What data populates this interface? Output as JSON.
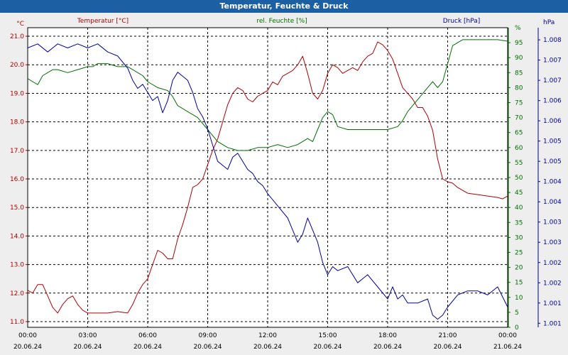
{
  "title": "Temperatur, Feuchte & Druck",
  "colors": {
    "temperature": "#b00000",
    "humidity": "#007000",
    "pressure": "#0000a0"
  },
  "chart_data": {
    "type": "line",
    "title": "Temperatur, Feuchte & Druck",
    "axes": {
      "temperature": {
        "label": "Temperatur [°C]",
        "unit": "°C",
        "ylim": [
          10.8,
          21.3
        ],
        "ticks": [
          "11.0",
          "12.0",
          "13.0",
          "14.0",
          "15.0",
          "16.0",
          "17.0",
          "18.0",
          "19.0",
          "20.0",
          "21.0"
        ]
      },
      "humidity": {
        "label": "rel. Feuchte [%]",
        "unit": "%",
        "ylim": [
          0,
          100
        ],
        "ticks": [
          "0",
          "5",
          "10",
          "15",
          "20",
          "25",
          "30",
          "35",
          "40",
          "45",
          "50",
          "55",
          "60",
          "65",
          "70",
          "75",
          "80",
          "85",
          "90",
          "95",
          "%"
        ]
      },
      "pressure": {
        "label": "Druck [hPa]",
        "unit": "hPa",
        "ylim": [
          1000.9,
          1008.3
        ],
        "ticks": [
          "1.001",
          "1.001",
          "1.002",
          "1.002",
          "1.003",
          "1.003",
          "1.004",
          "1.004",
          "1.005",
          "1.005",
          "1.006",
          "1.006",
          "1.007",
          "1.007",
          "1.008",
          "hPa"
        ]
      }
    },
    "x_ticks": [
      {
        "time": "00:00",
        "date": "20.06.24"
      },
      {
        "time": "03:00",
        "date": "20.06.24"
      },
      {
        "time": "06:00",
        "date": "20.06.24"
      },
      {
        "time": "09:00",
        "date": "20.06.24"
      },
      {
        "time": "12:00",
        "date": "20.06.24"
      },
      {
        "time": "15:00",
        "date": "20.06.24"
      },
      {
        "time": "18:00",
        "date": "20.06.24"
      },
      {
        "time": "21:00",
        "date": "20.06.24"
      },
      {
        "time": "00:00",
        "date": "21.06.24"
      }
    ],
    "xlim_hours": [
      0,
      24
    ],
    "series": [
      {
        "name": "Temperatur [°C]",
        "axis": "temperature",
        "x": [
          0,
          0.25,
          0.5,
          0.75,
          1,
          1.25,
          1.5,
          1.75,
          2,
          2.25,
          2.5,
          2.75,
          3,
          3.5,
          4,
          4.5,
          5,
          5.25,
          5.5,
          5.75,
          6,
          6.25,
          6.5,
          6.75,
          7,
          7.25,
          7.5,
          7.75,
          8,
          8.25,
          8.5,
          8.75,
          9,
          9.25,
          9.5,
          9.75,
          10,
          10.25,
          10.5,
          10.75,
          11,
          11.25,
          11.5,
          11.75,
          12,
          12.25,
          12.5,
          12.75,
          13,
          13.25,
          13.5,
          13.75,
          14,
          14.25,
          14.5,
          14.75,
          15,
          15.25,
          15.5,
          15.75,
          16,
          16.25,
          16.5,
          16.75,
          17,
          17.25,
          17.5,
          17.75,
          18,
          18.25,
          18.5,
          18.75,
          19,
          19.25,
          19.5,
          19.75,
          20,
          20.25,
          20.5,
          20.75,
          21,
          21.25,
          21.5,
          21.75,
          22,
          22.5,
          23,
          23.5,
          23.75,
          24
        ],
        "values": [
          12.1,
          12.0,
          12.3,
          12.3,
          11.9,
          11.5,
          11.3,
          11.6,
          11.8,
          11.9,
          11.6,
          11.4,
          11.3,
          11.3,
          11.3,
          11.35,
          11.3,
          11.6,
          12.0,
          12.3,
          12.5,
          13.0,
          13.5,
          13.4,
          13.2,
          13.2,
          13.9,
          14.4,
          15.0,
          15.7,
          15.8,
          16.0,
          16.5,
          17.0,
          17.4,
          18.0,
          18.6,
          19.0,
          19.2,
          19.1,
          18.8,
          18.7,
          18.9,
          19.0,
          19.1,
          19.4,
          19.3,
          19.6,
          19.7,
          19.8,
          20.0,
          20.3,
          19.7,
          19.0,
          18.8,
          19.1,
          19.7,
          20.0,
          19.9,
          19.7,
          19.8,
          19.9,
          19.8,
          20.1,
          20.3,
          20.4,
          20.8,
          20.7,
          20.5,
          20.2,
          19.7,
          19.2,
          19.0,
          18.8,
          18.5,
          18.5,
          18.2,
          17.7,
          16.7,
          16.0,
          15.9,
          15.85,
          15.7,
          15.6,
          15.5,
          15.45,
          15.4,
          15.35,
          15.3,
          15.4
        ]
      },
      {
        "name": "rel. Feuchte [%]",
        "axis": "humidity",
        "x": [
          0,
          0.25,
          0.5,
          0.75,
          1,
          1.25,
          1.5,
          2,
          2.5,
          3,
          3.25,
          3.5,
          4,
          4.5,
          5,
          5.25,
          5.5,
          5.75,
          6,
          6.5,
          7,
          7.25,
          7.5,
          8,
          8.5,
          9,
          9.5,
          10,
          10.5,
          11,
          11.5,
          12,
          12.5,
          13,
          13.5,
          14,
          14.25,
          14.5,
          14.75,
          15,
          15.25,
          15.5,
          16,
          16.5,
          17,
          17.5,
          18,
          18.5,
          18.75,
          19,
          19.25,
          19.5,
          20,
          20.25,
          20.5,
          20.75,
          21,
          21.25,
          21.5,
          21.75,
          22,
          22.5,
          23,
          23.5,
          24
        ],
        "values": [
          83,
          82,
          81,
          84,
          85,
          86,
          86,
          85,
          86,
          87,
          87,
          88,
          88,
          87,
          87,
          86,
          85,
          84,
          82,
          80,
          79,
          77,
          74,
          72,
          70,
          66,
          62,
          60,
          59,
          59,
          60,
          60,
          61,
          60,
          61,
          63,
          62,
          66,
          70,
          72,
          71,
          67,
          66,
          66,
          66,
          66,
          66,
          67,
          69,
          72,
          74,
          76,
          80,
          82,
          80,
          82,
          88,
          94,
          95,
          96,
          96,
          96,
          96,
          96,
          95.5
        ]
      },
      {
        "name": "Druck [hPa]",
        "axis": "pressure",
        "x": [
          0,
          0.5,
          1,
          1.25,
          1.5,
          2,
          2.5,
          3,
          3.5,
          4,
          4.5,
          5,
          5.25,
          5.5,
          5.75,
          6,
          6.25,
          6.5,
          6.75,
          7,
          7.25,
          7.5,
          7.75,
          8,
          8.25,
          8.5,
          8.75,
          9,
          9.25,
          9.5,
          9.75,
          10,
          10.25,
          10.5,
          10.75,
          11,
          11.25,
          11.5,
          11.75,
          12,
          12.5,
          13,
          13.25,
          13.5,
          13.75,
          14,
          14.25,
          14.5,
          14.75,
          15,
          15.25,
          15.5,
          16,
          16.5,
          17,
          17.5,
          18,
          18.25,
          18.5,
          18.75,
          19,
          19.5,
          20,
          20.25,
          20.5,
          20.75,
          21,
          21.5,
          22,
          22.5,
          23,
          23.5,
          24
        ],
        "values": [
          1007.8,
          1007.9,
          1007.7,
          1007.8,
          1007.9,
          1007.8,
          1007.9,
          1007.8,
          1007.9,
          1007.7,
          1007.6,
          1007.3,
          1007.0,
          1006.8,
          1006.9,
          1006.7,
          1006.5,
          1006.6,
          1006.2,
          1006.5,
          1007.0,
          1007.2,
          1007.1,
          1007.0,
          1006.7,
          1006.3,
          1006.1,
          1005.8,
          1005.4,
          1005.0,
          1004.9,
          1004.8,
          1005.1,
          1005.2,
          1005.0,
          1004.8,
          1004.7,
          1004.5,
          1004.4,
          1004.2,
          1003.9,
          1003.6,
          1003.3,
          1003.0,
          1003.2,
          1003.6,
          1003.3,
          1003.0,
          1002.5,
          1002.2,
          1002.4,
          1002.3,
          1002.4,
          1002.0,
          1002.2,
          1001.9,
          1001.6,
          1001.9,
          1001.6,
          1001.7,
          1001.5,
          1001.5,
          1001.6,
          1001.2,
          1001.1,
          1001.2,
          1001.4,
          1001.7,
          1001.8,
          1001.8,
          1001.7,
          1001.9,
          1001.4
        ]
      }
    ]
  }
}
